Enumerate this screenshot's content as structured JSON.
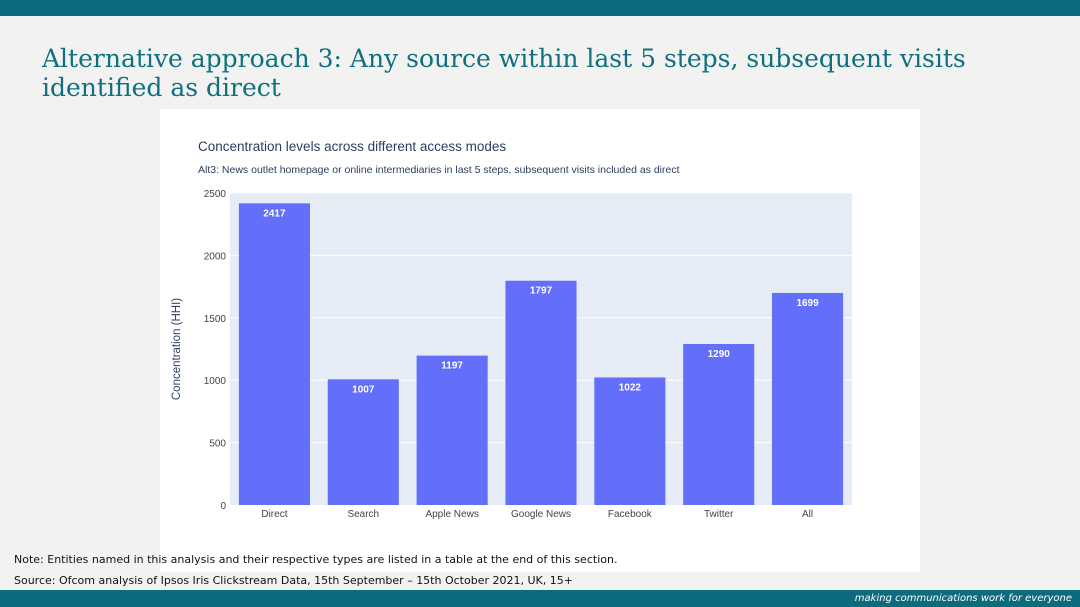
{
  "slide": {
    "title": "Alternative approach 3: Any source within last 5 steps, subsequent visits identified as direct",
    "note": "Note: Entities named in this analysis and their respective types are listed in a table at the end of this section.",
    "source": "Source: Ofcom analysis of Ipsos Iris Clickstream Data, 15th September – 15th October 2021, UK, 15+",
    "tagline_main": "making communications work ",
    "tagline_emph": "for everyone"
  },
  "colors": {
    "brand_bar": "#0e6b7d",
    "title": "#0f7080",
    "bar": "#636efa",
    "plot_bg": "#e5ecf6"
  },
  "chart_data": {
    "type": "bar",
    "title": "Concentration levels across different access modes",
    "subtitle": "Alt3: News outlet homepage or online intermediaries in last 5 steps, subsequent visits included as direct",
    "xlabel": "",
    "ylabel": "Concentration (HHI)",
    "categories": [
      "Direct",
      "Search",
      "Apple News",
      "Google News",
      "Facebook",
      "Twitter",
      "All"
    ],
    "values": [
      2417,
      1007,
      1197,
      1797,
      1022,
      1290,
      1699
    ],
    "ylim": [
      0,
      2500
    ],
    "yticks": [
      0,
      500,
      1000,
      1500,
      2000,
      2500
    ],
    "grid": true,
    "data_labels": true
  }
}
